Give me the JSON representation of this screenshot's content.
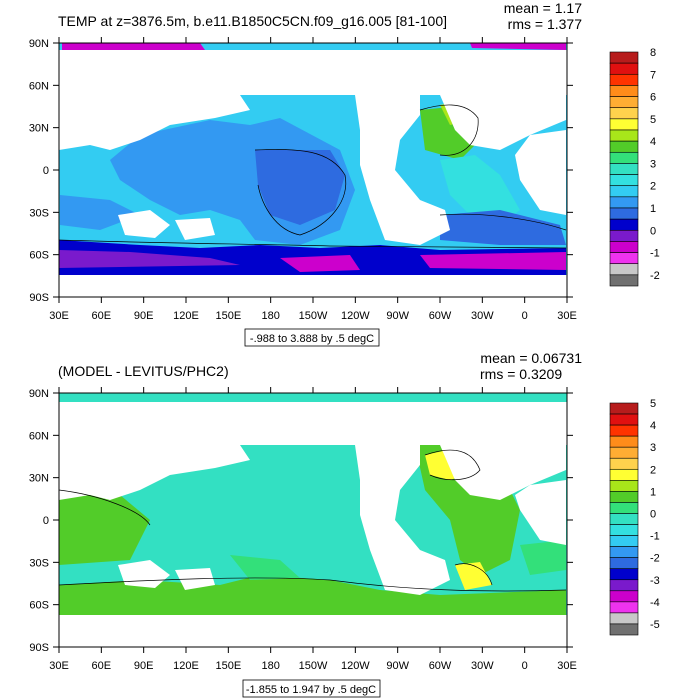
{
  "colors": {
    "background": "#ffffff",
    "land": "#ffffff",
    "axis": "#000000"
  },
  "panels": [
    {
      "title": "TEMP at z=3876.5m, b.e11.B1850C5CN.f09_g16.005 [81-100]",
      "mean_label": "mean = 1.17",
      "rms_label": "rms = 1.377",
      "range_label": "-.988 to 3.888 by .5 degC",
      "lat_ticks": [
        "90N",
        "60N",
        "30N",
        "0",
        "30S",
        "60S",
        "90S"
      ],
      "lon_ticks": [
        "30E",
        "60E",
        "90E",
        "120E",
        "150E",
        "180",
        "150W",
        "120W",
        "90W",
        "60W",
        "30W",
        "0",
        "30E"
      ],
      "colorbar_labels": [
        "8",
        "7",
        "6",
        "5",
        "4",
        "3",
        "2",
        "1",
        "0",
        "-1",
        "-2"
      ],
      "colorbar_colors": [
        "#b71c1c",
        "#e01010",
        "#ff3300",
        "#ff8c1a",
        "#ffad33",
        "#ffd24d",
        "#ffff33",
        "#a8e61a",
        "#52cc29",
        "#33e07a",
        "#33e0c2",
        "#33e0e0",
        "#33ccf2",
        "#3399f2",
        "#2e6be0",
        "#0000cc",
        "#7a1acc",
        "#cc00cc",
        "#ee33ee",
        "#c8c8c8",
        "#707070"
      ]
    },
    {
      "title": "(MODEL - LEVITUS/PHC2)",
      "mean_label": "mean = 0.06731",
      "rms_label": "rms = 0.3209",
      "range_label": "-1.855 to 1.947 by .5 degC",
      "lat_ticks": [
        "90N",
        "60N",
        "30N",
        "0",
        "30S",
        "60S",
        "90S"
      ],
      "lon_ticks": [
        "30E",
        "60E",
        "90E",
        "120E",
        "150E",
        "180",
        "150W",
        "120W",
        "90W",
        "60W",
        "30W",
        "0",
        "30E"
      ],
      "colorbar_labels": [
        "5",
        "4",
        "3",
        "2",
        "1",
        "0",
        "-1",
        "-2",
        "-3",
        "-4",
        "-5"
      ],
      "colorbar_colors": [
        "#b71c1c",
        "#e01010",
        "#ff3300",
        "#ff8c1a",
        "#ffad33",
        "#ffd24d",
        "#ffff33",
        "#a8e61a",
        "#52cc29",
        "#33e07a",
        "#33e0c2",
        "#33e0e0",
        "#33ccf2",
        "#3399f2",
        "#2e6be0",
        "#0000cc",
        "#7a1acc",
        "#cc00cc",
        "#ee33ee",
        "#c8c8c8",
        "#707070"
      ]
    }
  ]
}
